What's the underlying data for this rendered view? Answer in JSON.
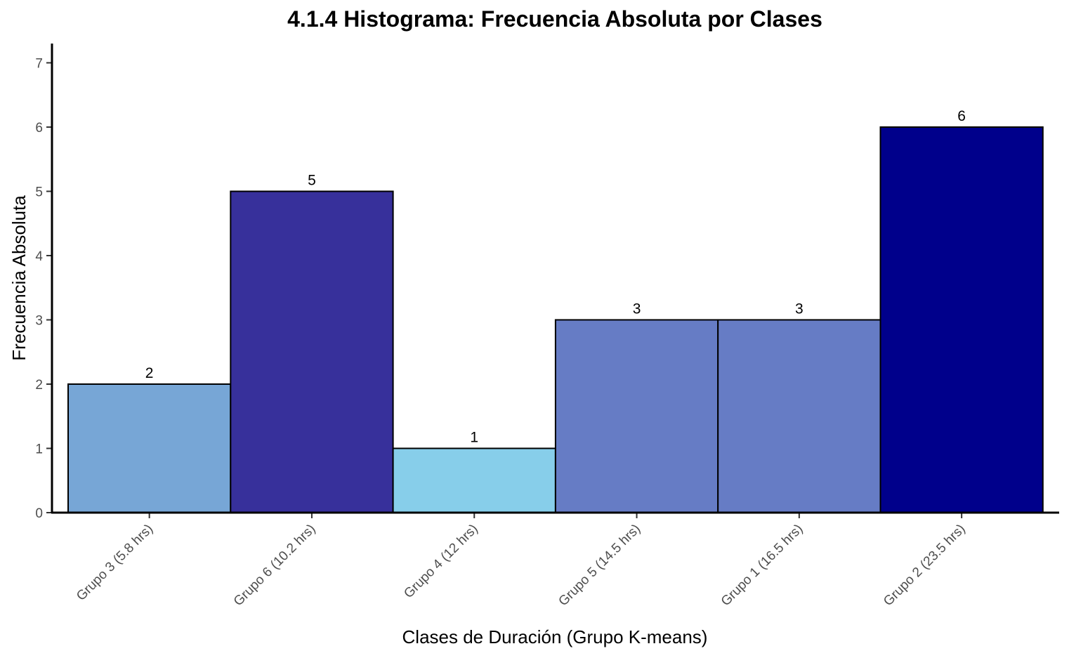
{
  "chart_data": {
    "type": "bar",
    "title": "4.1.4 Histograma: Frecuencia Absoluta por Clases",
    "xlabel": "Clases de Duración (Grupo K-means)",
    "ylabel": "Frecuencia Absoluta",
    "categories": [
      "Grupo 3 (5.8 hrs)",
      "Grupo 6 (10.2 hrs)",
      "Grupo 4 (12 hrs)",
      "Grupo 5 (14.5 hrs)",
      "Grupo 1 (16.5 hrs)",
      "Grupo 2 (23.5 hrs)"
    ],
    "values": [
      2,
      5,
      1,
      3,
      3,
      6
    ],
    "colors": [
      "#77a6d6",
      "#37309b",
      "#87ceea",
      "#667cc5",
      "#667cc5",
      "#00008b"
    ],
    "ylim": [
      0,
      7.3
    ],
    "yticks": [
      0,
      1,
      2,
      3,
      4,
      5,
      6,
      7
    ],
    "grid": false,
    "legend": "none"
  }
}
